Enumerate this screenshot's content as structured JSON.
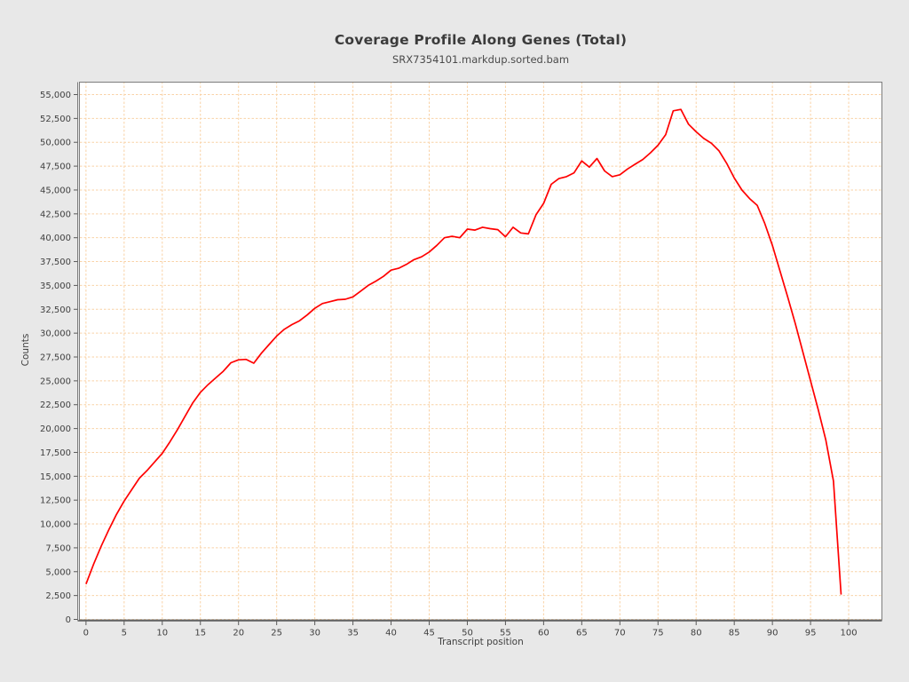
{
  "header": {
    "title": "Coverage Profile Along Genes (Total)",
    "subtitle": "SRX7354101.markdup.sorted.bam"
  },
  "chart_data": {
    "type": "line",
    "title": "Coverage Profile Along Genes (Total)",
    "subtitle": "SRX7354101.markdup.sorted.bam",
    "xlabel": "Transcript position",
    "ylabel": "Counts",
    "xlim": [
      -0.8,
      104.3
    ],
    "ylim": [
      0,
      56350
    ],
    "grid": true,
    "legend_position": "none",
    "x_ticks": [
      0,
      5,
      10,
      15,
      20,
      25,
      30,
      35,
      40,
      45,
      50,
      55,
      60,
      65,
      70,
      75,
      80,
      85,
      90,
      95,
      100
    ],
    "y_ticks": [
      0,
      2500,
      5000,
      7500,
      10000,
      12500,
      15000,
      17500,
      20000,
      22500,
      25000,
      27500,
      30000,
      32500,
      35000,
      37500,
      40000,
      42500,
      45000,
      47500,
      50000,
      52500,
      55000
    ],
    "series": [
      {
        "name": "SRX7354101.markdup.sorted.bam",
        "x": [
          0,
          1,
          2,
          3,
          4,
          5,
          6,
          7,
          8,
          9,
          10,
          11,
          12,
          13,
          14,
          15,
          16,
          17,
          18,
          19,
          20,
          21,
          22,
          23,
          24,
          25,
          26,
          27,
          28,
          29,
          30,
          31,
          32,
          33,
          34,
          35,
          36,
          37,
          38,
          39,
          40,
          41,
          42,
          43,
          44,
          45,
          46,
          47,
          48,
          49,
          50,
          51,
          52,
          53,
          54,
          55,
          56,
          57,
          58,
          59,
          60,
          61,
          62,
          63,
          64,
          65,
          66,
          67,
          68,
          69,
          70,
          71,
          72,
          73,
          74,
          75,
          76,
          77,
          78,
          79,
          80,
          81,
          82,
          83,
          84,
          85,
          86,
          87,
          88,
          89,
          90,
          91,
          92,
          93,
          94,
          95,
          96,
          97,
          98,
          99
        ],
        "y": [
          3700,
          5800,
          7700,
          9400,
          11000,
          12400,
          13600,
          14800,
          15600,
          16500,
          17400,
          18600,
          19900,
          21300,
          22700,
          23800,
          24600,
          25300,
          26000,
          26900,
          27200,
          27250,
          26850,
          27900,
          28800,
          29700,
          30400,
          30900,
          31300,
          31900,
          32600,
          33100,
          33300,
          33500,
          33550,
          33800,
          34400,
          35000,
          35450,
          35950,
          36600,
          36800,
          37200,
          37700,
          38000,
          38500,
          39200,
          40000,
          40150,
          40000,
          40900,
          40800,
          41100,
          40950,
          40850,
          40100,
          41100,
          40500,
          40400,
          42400,
          43600,
          45600,
          46200,
          46400,
          46800,
          48050,
          47400,
          48300,
          47000,
          46400,
          46600,
          47200,
          47700,
          48200,
          48900,
          49700,
          50800,
          53300,
          53450,
          51900,
          51100,
          50400,
          49900,
          49100,
          47800,
          46250,
          45000,
          44100,
          43400,
          41500,
          39200,
          36500,
          33800,
          31000,
          28000,
          25000,
          22000,
          18800,
          14500,
          2600
        ]
      }
    ]
  },
  "colors": {
    "background": "#e8e8e8",
    "plot_background": "#ffffff",
    "grid": "#f9d2a6",
    "line": "#ff0000",
    "border": "#7d7d7d",
    "axis": "#5a5a5a",
    "tick_text": "#3f3f3f"
  }
}
